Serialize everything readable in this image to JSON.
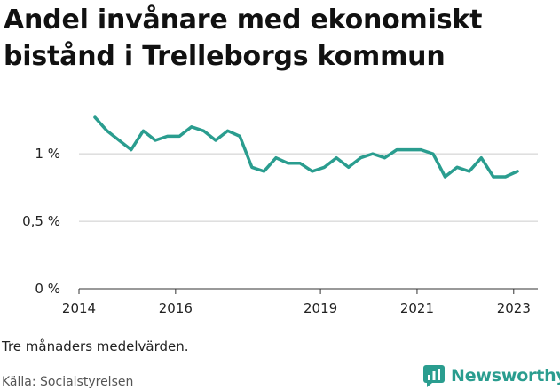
{
  "title_line1": "Andel invånare med ekonomiskt",
  "title_line2": "bistånd i Trelleborgs kommun",
  "note": "Tre månaders medelvärden.",
  "source": "Källa: Socialstyrelsen",
  "brand": {
    "name": "Newsworthy",
    "color": "#2a9d8f"
  },
  "chart_data": {
    "type": "line",
    "color": "#2a9d8f",
    "x_ticks": [
      2014,
      2016,
      2019,
      2021,
      2023
    ],
    "y_ticks": [
      {
        "value": 0,
        "label": "0 %"
      },
      {
        "value": 0.5,
        "label": "0,5 %"
      },
      {
        "value": 1,
        "label": "1 %"
      }
    ],
    "xlim": [
      2014,
      2023.5
    ],
    "ylim": [
      0,
      1.35
    ],
    "grid": "horizontal",
    "series": [
      {
        "x": [
          2014.33,
          2014.58,
          2014.83,
          2015.08,
          2015.33,
          2015.58,
          2015.83,
          2016.08,
          2016.33,
          2016.58,
          2016.83,
          2017.08,
          2017.33,
          2017.58,
          2017.83,
          2018.08,
          2018.33,
          2018.58,
          2018.83,
          2019.08,
          2019.33,
          2019.58,
          2019.83,
          2020.08,
          2020.33,
          2020.58,
          2020.83,
          2021.08,
          2021.33,
          2021.58,
          2021.83,
          2022.08,
          2022.33,
          2022.58,
          2022.83,
          2023.08
        ],
        "values": [
          1.27,
          1.17,
          1.1,
          1.03,
          1.17,
          1.1,
          1.13,
          1.13,
          1.2,
          1.17,
          1.1,
          1.17,
          1.13,
          0.9,
          0.87,
          0.97,
          0.93,
          0.93,
          0.87,
          0.9,
          0.97,
          0.9,
          0.97,
          1.0,
          0.97,
          1.03,
          1.03,
          1.03,
          1.0,
          0.83,
          0.9,
          0.87,
          0.97,
          0.83,
          0.83,
          0.87
        ]
      }
    ]
  }
}
